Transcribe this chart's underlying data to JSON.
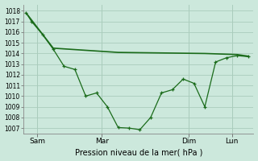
{
  "bg_color": "#cce8dc",
  "plot_bg_color": "#cce8dc",
  "grid_color": "#aaccbc",
  "line_color": "#1a6b1a",
  "xlabel": "Pression niveau de la mer( hPa )",
  "xtick_labels": [
    "Sam",
    "Mar",
    "Dim",
    "Lun"
  ],
  "yticks": [
    1007,
    1008,
    1009,
    1010,
    1011,
    1012,
    1013,
    1014,
    1015,
    1016,
    1017,
    1018
  ],
  "ylim": [
    1006.5,
    1018.6
  ],
  "line1_x": [
    0,
    1,
    3,
    5,
    7,
    9,
    11,
    13,
    15,
    17,
    19,
    21,
    23,
    25,
    27,
    29,
    31,
    33,
    35,
    37,
    39,
    41
  ],
  "line1_y": [
    1017.8,
    1017.0,
    1015.8,
    1014.4,
    1012.8,
    1012.5,
    1010.0,
    1010.3,
    1009.0,
    1007.05,
    1007.0,
    1006.85,
    1008.0,
    1010.3,
    1010.6,
    1011.6,
    1011.2,
    1009.0,
    1013.2,
    1013.6,
    1013.8,
    1013.7
  ],
  "line2_x": [
    0,
    5,
    17,
    33,
    39,
    41
  ],
  "line2_y": [
    1017.8,
    1014.5,
    1014.1,
    1014.0,
    1013.9,
    1013.75
  ],
  "xtick_x": [
    2,
    14,
    30,
    38
  ],
  "xlim": [
    -0.5,
    42
  ]
}
